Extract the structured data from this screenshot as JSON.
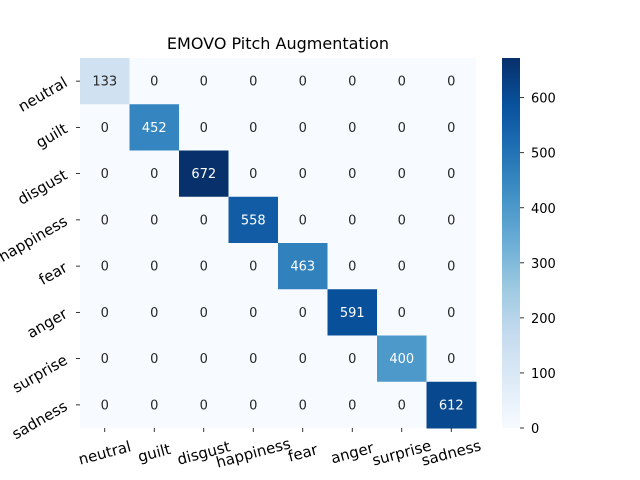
{
  "chart_data": {
    "type": "heatmap",
    "title": "EMOVO Pitch Augmentation",
    "xlabel": "",
    "ylabel": "",
    "x_categories": [
      "neutral",
      "guilt",
      "disgust",
      "happiness",
      "fear",
      "anger",
      "surprise",
      "sadness"
    ],
    "y_categories": [
      "neutral",
      "guilt",
      "disgust",
      "happiness",
      "fear",
      "anger",
      "surprise",
      "sadness"
    ],
    "values": [
      [
        133,
        0,
        0,
        0,
        0,
        0,
        0,
        0
      ],
      [
        0,
        452,
        0,
        0,
        0,
        0,
        0,
        0
      ],
      [
        0,
        0,
        672,
        0,
        0,
        0,
        0,
        0
      ],
      [
        0,
        0,
        0,
        558,
        0,
        0,
        0,
        0
      ],
      [
        0,
        0,
        0,
        0,
        463,
        0,
        0,
        0
      ],
      [
        0,
        0,
        0,
        0,
        0,
        591,
        0,
        0
      ],
      [
        0,
        0,
        0,
        0,
        0,
        0,
        400,
        0
      ],
      [
        0,
        0,
        0,
        0,
        0,
        0,
        0,
        612
      ]
    ],
    "colorbar": {
      "colormap": "Blues",
      "range": [
        0,
        672
      ],
      "ticks": [
        0,
        100,
        200,
        300,
        400,
        500,
        600
      ]
    },
    "grid": false
  }
}
